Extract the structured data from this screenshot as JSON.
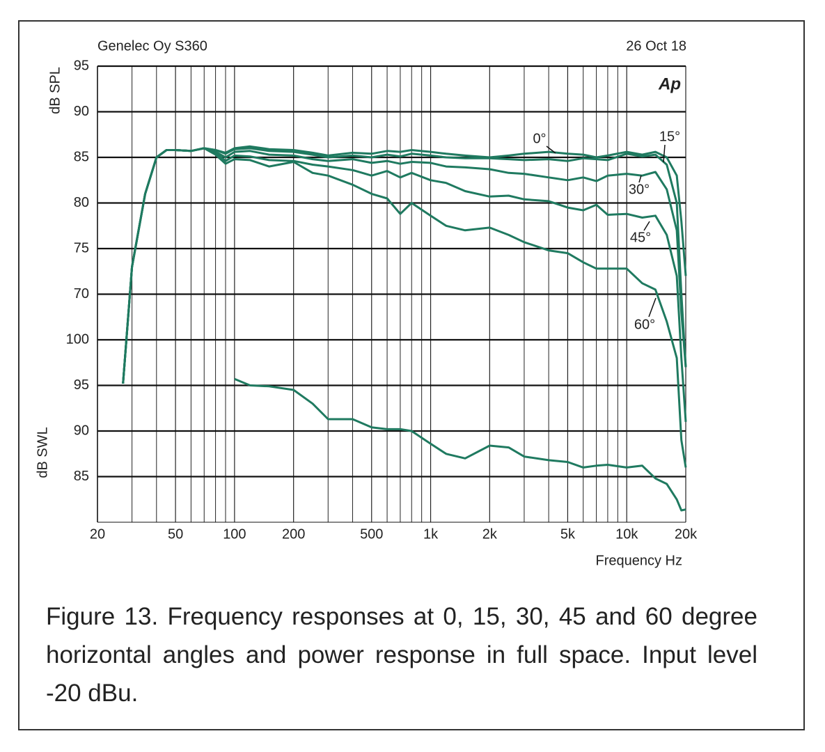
{
  "chart_data": {
    "type": "line",
    "title": "Genelec Oy S360",
    "date": "26 Oct 18",
    "logo": "Ap",
    "ylabel": "dB SPL",
    "y2label": "dB SWL",
    "xlabel": "Frequency Hz",
    "xscale": "log",
    "xlim": [
      20,
      20000
    ],
    "xticks": [
      20,
      50,
      100,
      200,
      500,
      {
        "value": 1000,
        "label": "1k"
      },
      {
        "value": 2000,
        "label": "2k"
      },
      {
        "value": 5000,
        "label": "5k"
      },
      {
        "value": 10000,
        "label": "10k"
      },
      {
        "value": 20000,
        "label": "20k"
      }
    ],
    "x_minor_grid": [
      30,
      40,
      60,
      70,
      80,
      90,
      300,
      400,
      600,
      700,
      800,
      900,
      3000,
      4000,
      6000,
      7000,
      8000,
      9000
    ],
    "ylim": [
      45,
      95
    ],
    "yticks": [
      70,
      75,
      80,
      85,
      90,
      95
    ],
    "y2lim": [
      80,
      130
    ],
    "y2ticks": [
      85,
      90,
      95,
      100
    ],
    "grid": true,
    "x": [
      27,
      30,
      35,
      40,
      45,
      50,
      60,
      70,
      80,
      90,
      100,
      120,
      150,
      200,
      250,
      300,
      400,
      500,
      600,
      700,
      800,
      1000,
      1200,
      1500,
      2000,
      2500,
      3000,
      4000,
      5000,
      6000,
      7000,
      8000,
      10000,
      12000,
      14000,
      16000,
      18000,
      19000,
      20000
    ],
    "series": [
      {
        "name": "0°",
        "color": "#1f7a60",
        "values": [
          60.2,
          73,
          81,
          85,
          85.8,
          85.8,
          85.7,
          86,
          85.8,
          85.5,
          86,
          86.2,
          85.9,
          85.8,
          85.5,
          85.2,
          85.5,
          85.4,
          85.7,
          85.6,
          85.8,
          85.6,
          85.4,
          85.2,
          85.0,
          85.2,
          85.4,
          85.6,
          85.4,
          85.3,
          85.0,
          85.2,
          85.6,
          85.3,
          85.6,
          85.0,
          83,
          78,
          72
        ]
      },
      {
        "name": "15°",
        "color": "#1f7a60",
        "values": [
          60.2,
          73,
          81,
          85,
          85.8,
          85.8,
          85.7,
          86,
          85.8,
          85.4,
          85.9,
          86,
          85.7,
          85.6,
          85.3,
          85,
          85.2,
          85,
          85.3,
          85.1,
          85.4,
          85.2,
          85,
          84.9,
          84.9,
          84.8,
          84.7,
          84.8,
          84.6,
          84.9,
          84.8,
          84.7,
          85.4,
          85.1,
          85.3,
          84.2,
          80,
          70,
          62
        ]
      },
      {
        "name": "30°",
        "color": "#1f7a60",
        "values": [
          60.2,
          73,
          81,
          85,
          85.8,
          85.8,
          85.7,
          86,
          85.6,
          85,
          85.6,
          85.7,
          85.3,
          85.2,
          84.8,
          84.6,
          84.8,
          84.4,
          84.6,
          84.3,
          84.5,
          84.4,
          84,
          83.9,
          83.7,
          83.3,
          83.2,
          82.8,
          82.5,
          82.8,
          82.4,
          83,
          83.2,
          83,
          83.4,
          81.5,
          77,
          68,
          62
        ]
      },
      {
        "name": "45°",
        "color": "#1f7a60",
        "values": [
          60.2,
          73,
          81,
          85,
          85.8,
          85.8,
          85.7,
          86,
          85.5,
          84.6,
          85.2,
          85.1,
          84.7,
          84.6,
          84.2,
          84,
          83.6,
          83,
          83.5,
          82.8,
          83.3,
          82.5,
          82.2,
          81.3,
          80.7,
          80.8,
          80.4,
          80.2,
          79.5,
          79.2,
          79.8,
          78.7,
          78.8,
          78.4,
          78.6,
          76.5,
          72,
          63,
          56
        ]
      },
      {
        "name": "60°",
        "color": "#1f7a60",
        "values": [
          60.2,
          73,
          81,
          85,
          85.8,
          85.8,
          85.7,
          86,
          85.3,
          84.3,
          84.8,
          84.7,
          84,
          84.5,
          83.3,
          83,
          82,
          81,
          80.5,
          78.8,
          80,
          78.6,
          77.5,
          77,
          77.3,
          76.5,
          75.7,
          74.8,
          74.5,
          73.5,
          72.8,
          72.8,
          72.8,
          71.2,
          70.5,
          67,
          63,
          54,
          51
        ]
      },
      {
        "color": "#1f7a60",
        "axis": "y2",
        "values": [
          null,
          null,
          null,
          null,
          null,
          null,
          null,
          null,
          null,
          null,
          95.7,
          95,
          94.9,
          94.5,
          93,
          91.3,
          91.3,
          90.4,
          90.2,
          90.2,
          90,
          88.6,
          87.5,
          87,
          88.4,
          88.2,
          87.2,
          86.8,
          86.6,
          86,
          86.2,
          86.3,
          86,
          86.2,
          84.8,
          84.2,
          82.5,
          81.3,
          81.4
        ]
      }
    ]
  },
  "caption": "Figure 13. Frequency responses at 0, 15, 30, 45 and 60 degree horizontal angles and power response in full space. Input level -20 dBu."
}
